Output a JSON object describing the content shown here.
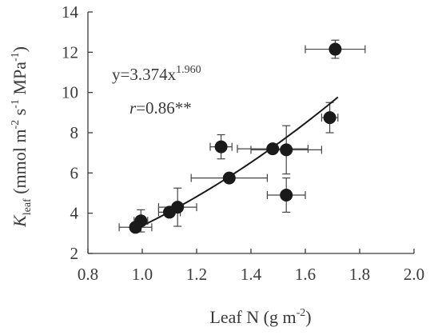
{
  "chart_data": {
    "type": "scatter",
    "xlabel": {
      "main": "Leaf N (g m",
      "sup": "-2",
      "tail": ")"
    },
    "ylabel": {
      "sym": "K",
      "sub": "leaf",
      "units": [
        {
          "t": " (mmol m",
          "sup": "-2"
        },
        {
          "t": " s",
          "sup": "-1"
        },
        {
          "t": " MPa",
          "sup": "-1"
        },
        {
          "t": ")",
          "sup": ""
        }
      ]
    },
    "xlim": [
      0.8,
      2.0
    ],
    "ylim": [
      2,
      14
    ],
    "xticks": [
      "0.8",
      "1.0",
      "1.2",
      "1.4",
      "1.6",
      "1.8",
      "2.0"
    ],
    "yticks": [
      "2",
      "4",
      "6",
      "8",
      "10",
      "12",
      "14"
    ],
    "grid": false,
    "legend": "none",
    "points": [
      {
        "x": 0.975,
        "y": 3.3,
        "xerr": 0.06,
        "yerr": 0.1
      },
      {
        "x": 0.995,
        "y": 3.62,
        "xerr": 0.025,
        "yerr": 0.55
      },
      {
        "x": 1.1,
        "y": 4.05,
        "xerr": 0.04,
        "yerr": 0.15
      },
      {
        "x": 1.13,
        "y": 4.3,
        "xerr": 0.07,
        "yerr": 0.95
      },
      {
        "x": 1.29,
        "y": 7.3,
        "xerr": 0.04,
        "yerr": 0.6
      },
      {
        "x": 1.32,
        "y": 5.75,
        "xerr": 0.14,
        "yerr": 0.1
      },
      {
        "x": 1.48,
        "y": 7.2,
        "xerr": 0.13,
        "yerr": 0.1
      },
      {
        "x": 1.53,
        "y": 7.15,
        "xerr": 0.13,
        "yerr": 1.2
      },
      {
        "x": 1.53,
        "y": 4.9,
        "xerr": 0.07,
        "yerr": 0.85
      },
      {
        "x": 1.69,
        "y": 8.75,
        "xerr": 0.03,
        "yerr": 0.75
      },
      {
        "x": 1.71,
        "y": 12.15,
        "xerr": 0.11,
        "yerr": 0.45
      }
    ],
    "fit": {
      "a": 3.374,
      "b": 1.96,
      "x_range": [
        0.975,
        1.72
      ]
    },
    "annotations": {
      "equation_base": "y=3.374x",
      "equation_exp": "1.960",
      "r_symbol": "r",
      "r_value": "=0.86**"
    },
    "colors": {
      "marker": "#1a1a1a",
      "line": "#1a1a1a",
      "axis": "#3a3a3a",
      "text": "#3a3a3a"
    }
  }
}
